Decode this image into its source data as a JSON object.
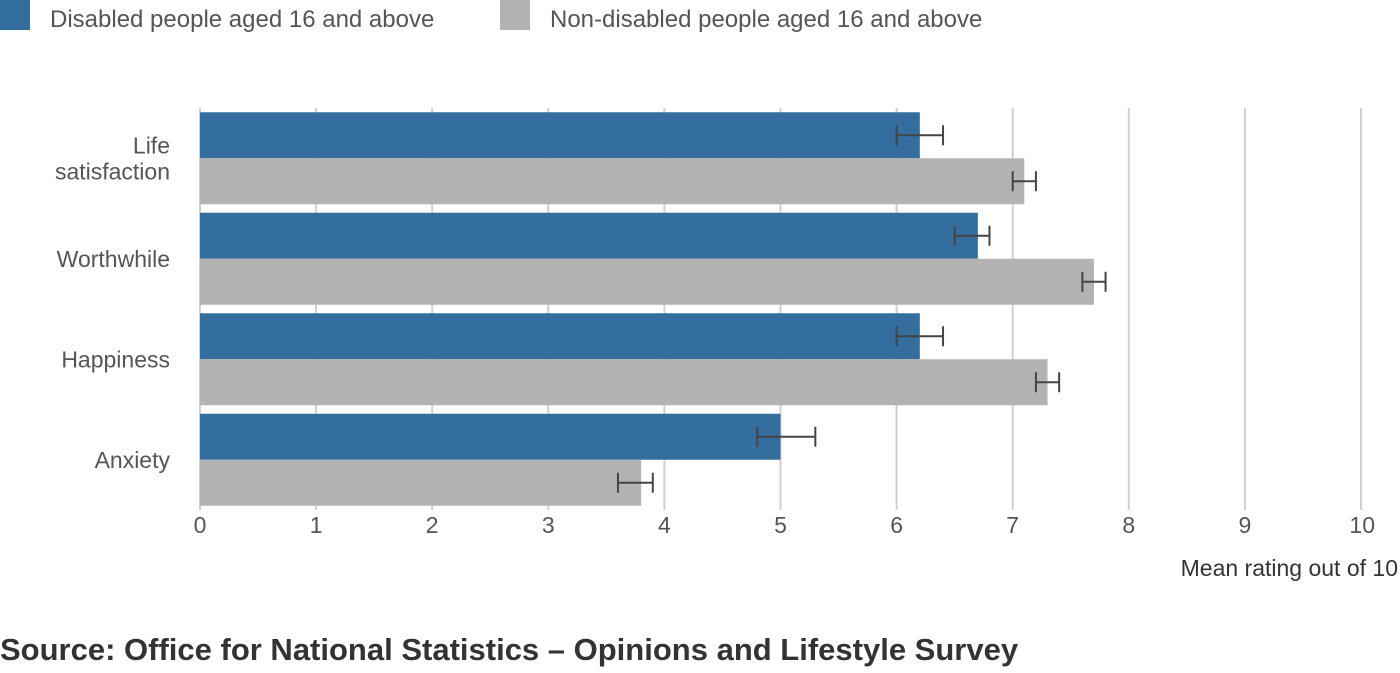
{
  "chart_data": {
    "type": "bar",
    "orientation": "horizontal",
    "categories": [
      "Life satisfaction",
      "Worthwhile",
      "Happiness",
      "Anxiety"
    ],
    "series": [
      {
        "name": "Disabled people aged 16 and above",
        "color": "#336e9e",
        "values": [
          6.2,
          6.7,
          6.2,
          5.0
        ],
        "error_low": [
          6.0,
          6.5,
          6.0,
          4.8
        ],
        "error_high": [
          6.4,
          6.8,
          6.4,
          5.3
        ]
      },
      {
        "name": "Non-disabled people aged 16 and above",
        "color": "#b3b3b3",
        "values": [
          7.1,
          7.7,
          7.3,
          3.8
        ],
        "error_low": [
          7.0,
          7.6,
          7.2,
          3.6
        ],
        "error_high": [
          7.2,
          7.8,
          7.4,
          3.9
        ]
      }
    ],
    "xticks": [
      "0",
      "1",
      "2",
      "3",
      "4",
      "5",
      "6",
      "7",
      "8",
      "9",
      "10"
    ],
    "xlim": [
      0,
      10
    ],
    "xlabel": "Mean rating out of 10",
    "grid": "vertical",
    "legend_position": "top-left"
  },
  "source": "Source: Office for National Statistics – Opinions and Lifestyle Survey"
}
